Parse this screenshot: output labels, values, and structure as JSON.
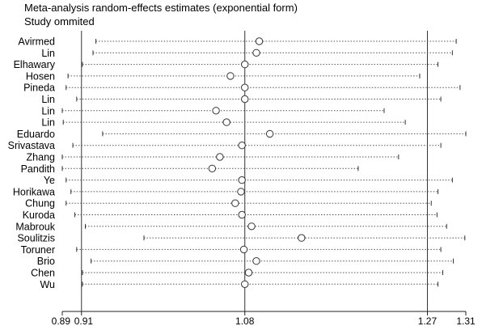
{
  "chart_data": {
    "type": "forest",
    "title": "Meta-analysis random-effects estimates (exponential form)",
    "subtitle": "Study ommited",
    "xlim": [
      0.89,
      1.31
    ],
    "x_ticks": [
      0.89,
      0.91,
      1.08,
      1.27,
      1.31
    ],
    "x_tick_labels": [
      "0.89",
      "0.91",
      "1.08",
      "1.27",
      "1.31"
    ],
    "reference_lines": [
      0.91,
      1.08,
      1.27
    ],
    "studies": [
      {
        "name": "Avirmed",
        "estimate": 1.095,
        "lower": 0.925,
        "upper": 1.3
      },
      {
        "name": "Lin",
        "estimate": 1.092,
        "lower": 0.922,
        "upper": 1.296
      },
      {
        "name": "Elhawary",
        "estimate": 1.08,
        "lower": 0.911,
        "upper": 1.281
      },
      {
        "name": "Hosen",
        "estimate": 1.065,
        "lower": 0.896,
        "upper": 1.262
      },
      {
        "name": "Pineda",
        "estimate": 1.08,
        "lower": 0.894,
        "upper": 1.304
      },
      {
        "name": "Lin",
        "estimate": 1.08,
        "lower": 0.905,
        "upper": 1.284
      },
      {
        "name": "Lin",
        "estimate": 1.05,
        "lower": 0.89,
        "upper": 1.225
      },
      {
        "name": "Lin",
        "estimate": 1.061,
        "lower": 0.891,
        "upper": 1.247
      },
      {
        "name": "Eduardo",
        "estimate": 1.106,
        "lower": 0.932,
        "upper": 1.31
      },
      {
        "name": "Srivastava",
        "estimate": 1.077,
        "lower": 0.901,
        "upper": 1.284
      },
      {
        "name": "Zhang",
        "estimate": 1.054,
        "lower": 0.89,
        "upper": 1.24
      },
      {
        "name": "Pandith",
        "estimate": 1.046,
        "lower": 0.89,
        "upper": 1.198
      },
      {
        "name": "Ye",
        "estimate": 1.077,
        "lower": 0.894,
        "upper": 1.296
      },
      {
        "name": "Horikawa",
        "estimate": 1.076,
        "lower": 0.899,
        "upper": 1.281
      },
      {
        "name": "Chung",
        "estimate": 1.07,
        "lower": 0.894,
        "upper": 1.274
      },
      {
        "name": "Kuroda",
        "estimate": 1.077,
        "lower": 0.903,
        "upper": 1.28
      },
      {
        "name": "Mabrouk",
        "estimate": 1.087,
        "lower": 0.914,
        "upper": 1.29
      },
      {
        "name": "Soulitzis",
        "estimate": 1.139,
        "lower": 0.975,
        "upper": 1.309
      },
      {
        "name": "Toruner",
        "estimate": 1.079,
        "lower": 0.905,
        "upper": 1.284
      },
      {
        "name": "Brio",
        "estimate": 1.092,
        "lower": 0.92,
        "upper": 1.297
      },
      {
        "name": "Chen",
        "estimate": 1.084,
        "lower": 0.911,
        "upper": 1.286
      },
      {
        "name": "Wu",
        "estimate": 1.08,
        "lower": 0.911,
        "upper": 1.281
      }
    ]
  }
}
